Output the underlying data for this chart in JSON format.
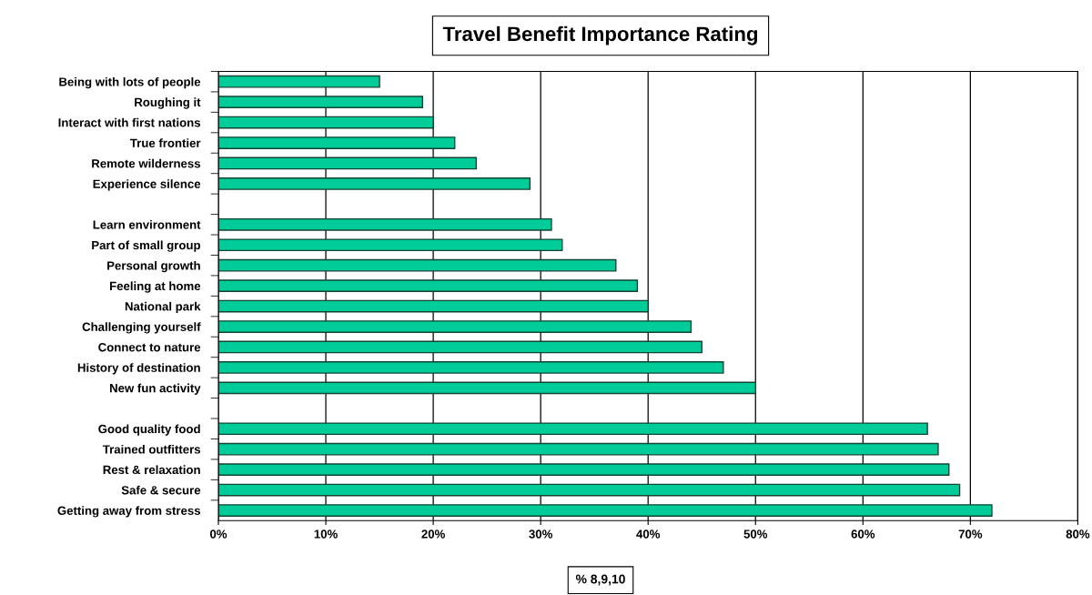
{
  "chart_data": {
    "type": "bar",
    "orientation": "horizontal",
    "title": "Travel Benefit Importance Rating",
    "xlabel": "% 8,9,10",
    "categories": [
      "Being with lots of people",
      "Roughing it",
      "Interact with first nations",
      "True frontier",
      "Remote wilderness",
      "Experience silence",
      null,
      "Learn environment",
      "Part of small group",
      "Personal growth",
      "Feeling at home",
      "National park",
      "Challenging yourself",
      "Connect to nature",
      "History of destination",
      "New fun activity",
      null,
      "Good quality food",
      "Trained outfitters",
      "Rest & relaxation",
      "Safe & secure",
      "Getting away from stress"
    ],
    "values": [
      15,
      19,
      20,
      22,
      24,
      29,
      null,
      31,
      32,
      37,
      39,
      40,
      44,
      45,
      47,
      50,
      null,
      66,
      67,
      68,
      69,
      72
    ],
    "color": "#00cc99",
    "xlim": [
      0,
      80
    ],
    "xticks": [
      {
        "value": 0,
        "label": "0%"
      },
      {
        "value": 10,
        "label": "10%"
      },
      {
        "value": 20,
        "label": "20%"
      },
      {
        "value": 30,
        "label": "30%"
      },
      {
        "value": 40,
        "label": "40%"
      },
      {
        "value": 50,
        "label": "50%"
      },
      {
        "value": 60,
        "label": "60%"
      },
      {
        "value": 70,
        "label": "70%"
      },
      {
        "value": 80,
        "label": "80%"
      }
    ],
    "grid": "x"
  }
}
